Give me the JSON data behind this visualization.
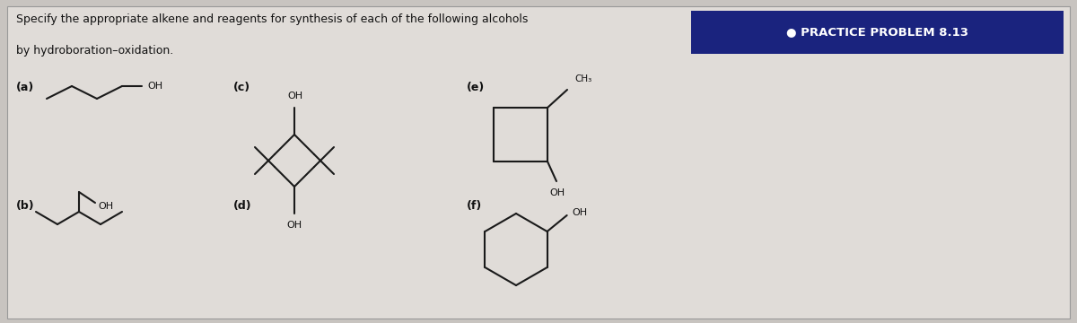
{
  "bg_color": "#c8c4c0",
  "panel_bg": "#e0dcd8",
  "title_text": "Specify the appropriate alkene and reagents for synthesis of each of the following alcohols",
  "title_text2": "by hydroboration–oxidation.",
  "practice_label": "● PRACTICE PROBLEM 8.13",
  "practice_bg": "#1a237e",
  "practice_fg": "#ffffff",
  "line_color": "#1a1a1a",
  "lw": 1.5
}
